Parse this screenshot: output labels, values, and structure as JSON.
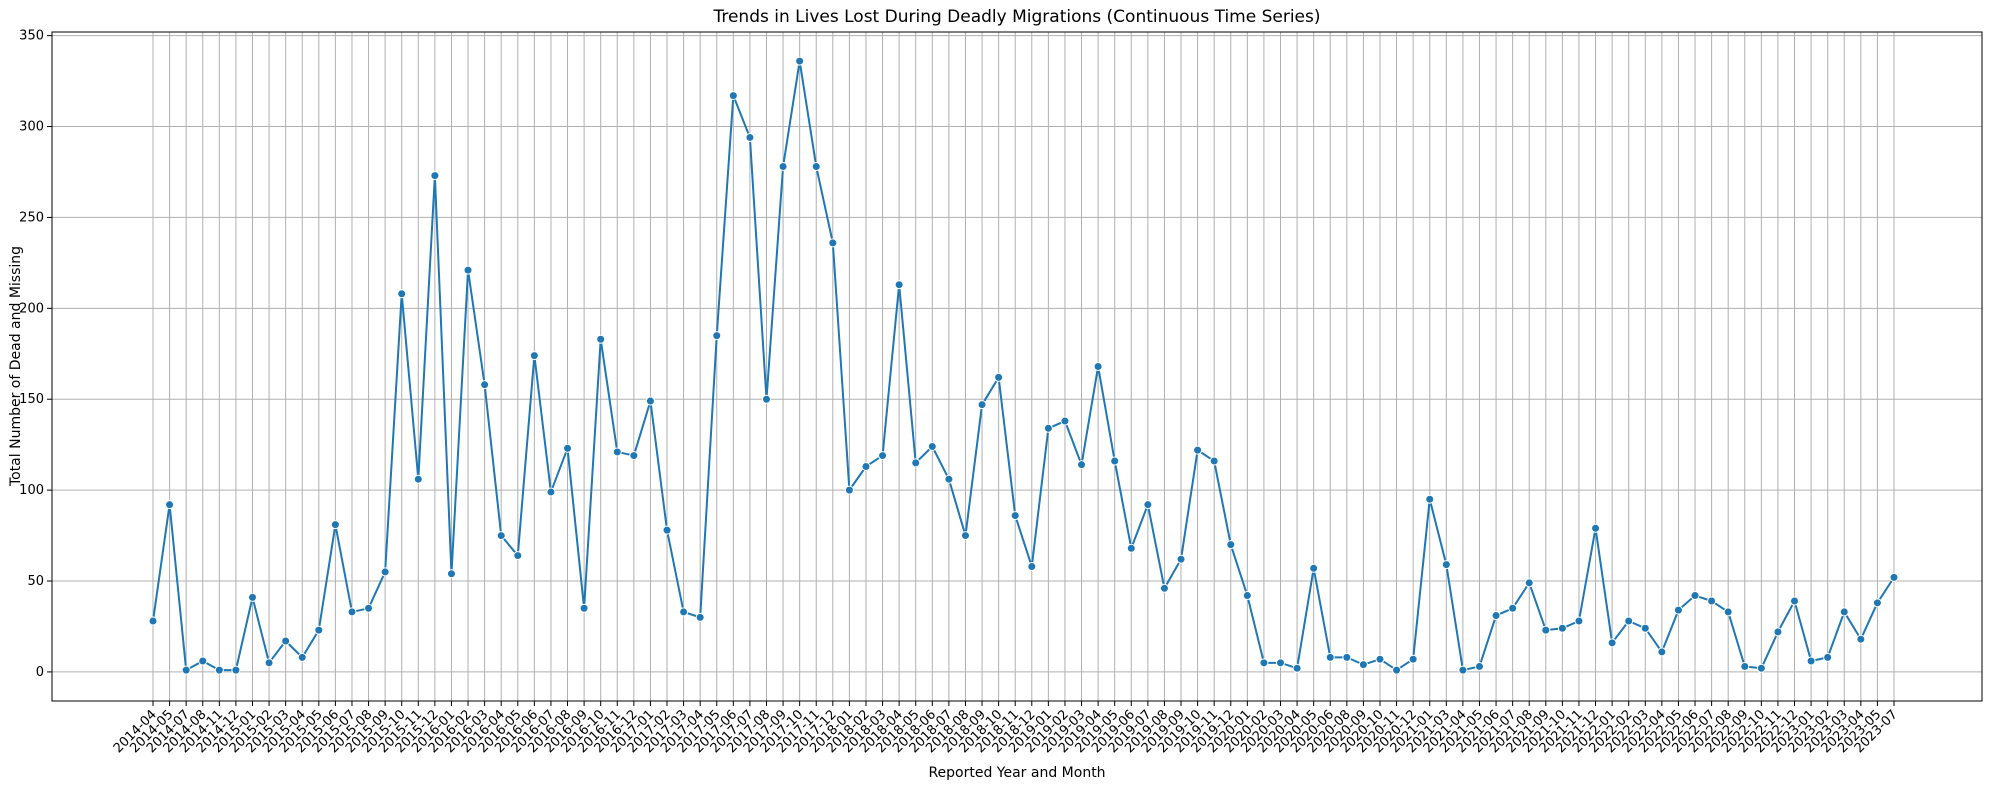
{
  "chart_data": {
    "type": "line",
    "title": "Trends in Lives Lost During Deadly Migrations (Continuous Time Series)",
    "xlabel": "Reported Year and Month",
    "ylabel": "Total Number of Dead and Missing",
    "ylim": [
      -16,
      352
    ],
    "yticks": [
      0,
      50,
      100,
      150,
      200,
      250,
      300,
      350
    ],
    "grid": true,
    "marker": "circle",
    "line_color": "#1f77b4",
    "categories": [
      "2014-04",
      "2014-05",
      "2014-07",
      "2014-08",
      "2014-11",
      "2014-12",
      "2015-01",
      "2015-02",
      "2015-03",
      "2015-04",
      "2015-05",
      "2015-06",
      "2015-07",
      "2015-08",
      "2015-09",
      "2015-10",
      "2015-11",
      "2015-12",
      "2016-01",
      "2016-02",
      "2016-03",
      "2016-04",
      "2016-05",
      "2016-06",
      "2016-07",
      "2016-08",
      "2016-09",
      "2016-10",
      "2016-11",
      "2016-12",
      "2017-01",
      "2017-02",
      "2017-03",
      "2017-04",
      "2017-05",
      "2017-06",
      "2017-07",
      "2017-08",
      "2017-09",
      "2017-10",
      "2017-11",
      "2017-12",
      "2018-01",
      "2018-02",
      "2018-03",
      "2018-04",
      "2018-05",
      "2018-06",
      "2018-07",
      "2018-08",
      "2018-09",
      "2018-10",
      "2018-11",
      "2018-12",
      "2019-01",
      "2019-02",
      "2019-03",
      "2019-04",
      "2019-05",
      "2019-06",
      "2019-07",
      "2019-08",
      "2019-09",
      "2019-10",
      "2019-11",
      "2019-12",
      "2020-01",
      "2020-02",
      "2020-03",
      "2020-04",
      "2020-05",
      "2020-06",
      "2020-08",
      "2020-09",
      "2020-10",
      "2020-11",
      "2020-12",
      "2021-01",
      "2021-03",
      "2021-04",
      "2021-05",
      "2021-06",
      "2021-07",
      "2021-08",
      "2021-09",
      "2021-10",
      "2021-11",
      "2021-12",
      "2022-01",
      "2022-02",
      "2022-03",
      "2022-04",
      "2022-05",
      "2022-06",
      "2022-07",
      "2022-08",
      "2022-09",
      "2022-10",
      "2022-11",
      "2022-12",
      "2023-01",
      "2023-02",
      "2023-03",
      "2023-04",
      "2023-05",
      "2023-07"
    ],
    "series": [
      {
        "values": [
          28,
          92,
          1,
          6,
          1,
          1,
          41,
          5,
          17,
          8,
          23,
          81,
          33,
          35,
          55,
          208,
          106,
          273,
          54,
          221,
          158,
          75,
          64,
          174,
          99,
          123,
          35,
          183,
          121,
          119,
          149,
          78,
          33,
          30,
          185,
          317,
          294,
          150,
          278,
          336,
          278,
          236,
          100,
          113,
          119,
          213,
          115,
          124,
          106,
          75,
          147,
          162,
          86,
          58,
          134,
          138,
          114,
          168,
          116,
          68,
          92,
          46,
          62,
          122,
          116,
          70,
          42,
          5,
          5,
          2,
          57,
          8,
          8,
          4,
          7,
          1,
          7,
          95,
          59,
          1,
          3,
          31,
          35,
          49,
          23,
          24,
          28,
          79,
          16,
          28,
          24,
          11,
          34,
          42,
          39,
          33,
          3,
          2,
          22,
          39,
          6,
          8,
          33,
          18,
          38,
          52
        ]
      }
    ]
  }
}
